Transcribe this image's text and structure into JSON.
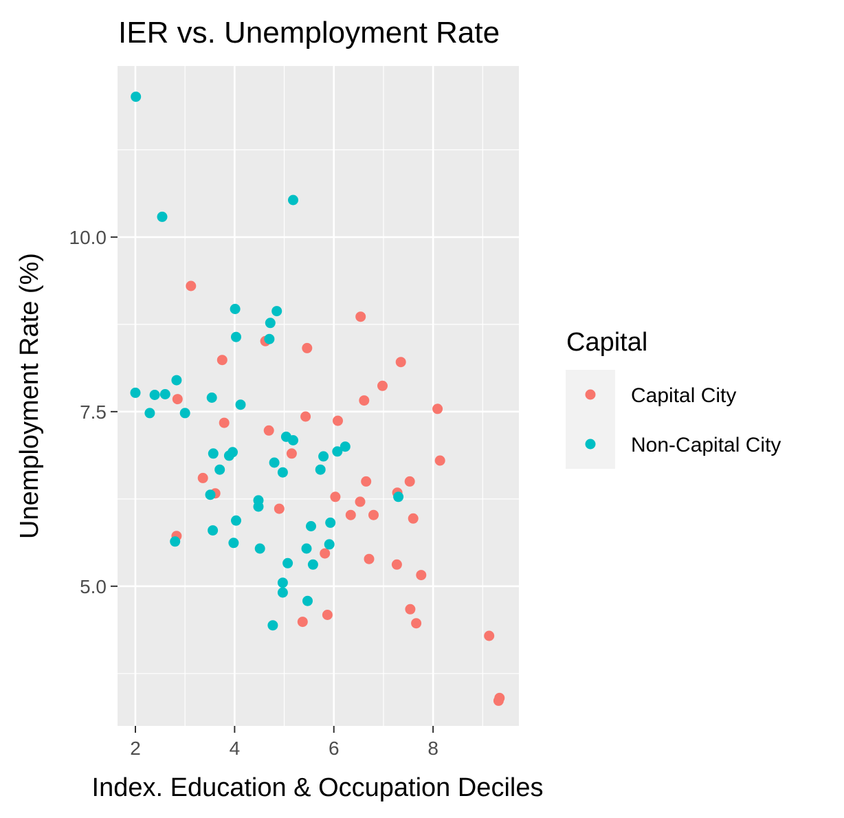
{
  "chart_data": {
    "type": "scatter",
    "title": "IER vs. Unemployment Rate",
    "xlabel": "Index. Education & Occupation Deciles",
    "ylabel": "Unemployment Rate (%)",
    "xlim": [
      1.64,
      9.73
    ],
    "ylim": [
      3.0,
      12.45
    ],
    "x_ticks": [
      2,
      4,
      6,
      8
    ],
    "x_tick_labels": [
      "2",
      "4",
      "6",
      "8"
    ],
    "y_ticks": [
      5.0,
      7.5,
      10.0
    ],
    "y_tick_labels": [
      "5.0",
      "7.5",
      "10.0"
    ],
    "grid": true,
    "legend": {
      "title": "Capital",
      "position": "right"
    },
    "series": [
      {
        "name": "Capital City",
        "color": "#F8766D",
        "points": [
          [
            3.12,
            9.3
          ],
          [
            6.54,
            8.86
          ],
          [
            4.62,
            8.51
          ],
          [
            5.46,
            8.41
          ],
          [
            3.75,
            8.24
          ],
          [
            7.35,
            8.21
          ],
          [
            6.98,
            7.87
          ],
          [
            2.85,
            7.68
          ],
          [
            6.61,
            7.66
          ],
          [
            8.09,
            7.54
          ],
          [
            5.43,
            7.43
          ],
          [
            6.08,
            7.37
          ],
          [
            3.79,
            7.34
          ],
          [
            4.69,
            7.23
          ],
          [
            5.15,
            6.9
          ],
          [
            8.14,
            6.8
          ],
          [
            3.36,
            6.55
          ],
          [
            6.65,
            6.5
          ],
          [
            7.53,
            6.5
          ],
          [
            3.61,
            6.33
          ],
          [
            7.28,
            6.34
          ],
          [
            6.03,
            6.28
          ],
          [
            6.53,
            6.21
          ],
          [
            4.9,
            6.11
          ],
          [
            6.34,
            6.02
          ],
          [
            6.8,
            6.02
          ],
          [
            7.6,
            5.97
          ],
          [
            2.83,
            5.72
          ],
          [
            5.82,
            5.47
          ],
          [
            6.71,
            5.39
          ],
          [
            7.27,
            5.31
          ],
          [
            7.76,
            5.16
          ],
          [
            7.54,
            4.67
          ],
          [
            5.87,
            4.59
          ],
          [
            5.37,
            4.49
          ],
          [
            7.66,
            4.47
          ],
          [
            9.13,
            4.29
          ],
          [
            9.34,
            3.4
          ],
          [
            9.32,
            3.36
          ]
        ]
      },
      {
        "name": "Non-Capital City",
        "color": "#00BFC4",
        "points": [
          [
            2.01,
            12.01
          ],
          [
            5.18,
            10.53
          ],
          [
            2.54,
            10.29
          ],
          [
            4.01,
            8.97
          ],
          [
            4.85,
            8.94
          ],
          [
            4.72,
            8.77
          ],
          [
            4.03,
            8.57
          ],
          [
            4.7,
            8.54
          ],
          [
            2.83,
            7.95
          ],
          [
            2.0,
            7.77
          ],
          [
            2.39,
            7.74
          ],
          [
            2.6,
            7.75
          ],
          [
            3.54,
            7.7
          ],
          [
            4.12,
            7.6
          ],
          [
            2.29,
            7.48
          ],
          [
            3.0,
            7.48
          ],
          [
            5.04,
            7.14
          ],
          [
            5.18,
            7.09
          ],
          [
            6.23,
            7.0
          ],
          [
            6.07,
            6.93
          ],
          [
            3.96,
            6.92
          ],
          [
            3.57,
            6.9
          ],
          [
            3.89,
            6.87
          ],
          [
            5.79,
            6.86
          ],
          [
            4.8,
            6.77
          ],
          [
            3.7,
            6.67
          ],
          [
            5.73,
            6.67
          ],
          [
            4.97,
            6.63
          ],
          [
            3.51,
            6.31
          ],
          [
            7.3,
            6.28
          ],
          [
            4.48,
            6.23
          ],
          [
            4.48,
            6.14
          ],
          [
            4.03,
            5.94
          ],
          [
            5.93,
            5.91
          ],
          [
            5.54,
            5.86
          ],
          [
            3.56,
            5.8
          ],
          [
            2.8,
            5.64
          ],
          [
            3.98,
            5.62
          ],
          [
            5.91,
            5.6
          ],
          [
            4.51,
            5.54
          ],
          [
            5.45,
            5.54
          ],
          [
            5.07,
            5.33
          ],
          [
            5.58,
            5.31
          ],
          [
            4.97,
            5.05
          ],
          [
            4.97,
            4.91
          ],
          [
            5.47,
            4.79
          ],
          [
            4.77,
            4.44
          ]
        ]
      }
    ]
  }
}
